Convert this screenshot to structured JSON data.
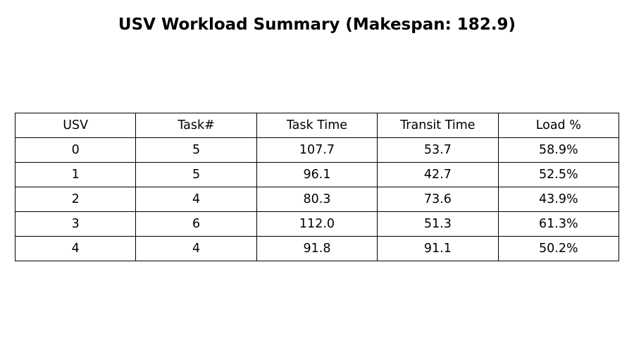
{
  "chart_data": {
    "type": "table",
    "title": "USV Workload Summary (Makespan: 182.9)",
    "columns": [
      "USV",
      "Task#",
      "Task Time",
      "Transit Time",
      "Load %"
    ],
    "rows": [
      [
        "0",
        "5",
        "107.7",
        "53.7",
        "58.9%"
      ],
      [
        "1",
        "5",
        "96.1",
        "42.7",
        "52.5%"
      ],
      [
        "2",
        "4",
        "80.3",
        "73.6",
        "43.9%"
      ],
      [
        "3",
        "6",
        "112.0",
        "51.3",
        "61.3%"
      ],
      [
        "4",
        "4",
        "91.8",
        "91.1",
        "50.2%"
      ]
    ]
  }
}
